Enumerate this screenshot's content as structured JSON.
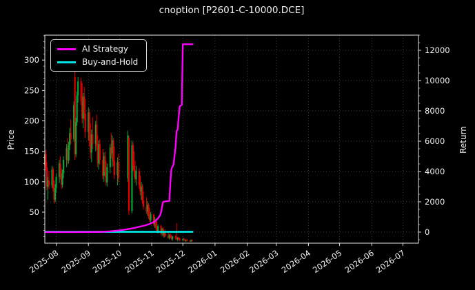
{
  "title": "cnoption [P2601-C-10000.DCE]",
  "legend": {
    "position": "upper-left",
    "items": [
      {
        "label": "AI Strategy",
        "color": "#ff00ff"
      },
      {
        "label": "Buy-and-Hold",
        "color": "#00e5e5"
      }
    ]
  },
  "colors": {
    "background": "#000000",
    "text": "#f2f2f2",
    "spine": "#e6e6e6",
    "grid": "#4f4f4f",
    "candle_up": "#00a83b",
    "candle_down": "#e00000",
    "ai_strategy": "#ff00ff",
    "buy_and_hold": "#00e5e5"
  },
  "chart_data": {
    "type": "candlestick+line",
    "title": "cnoption [P2601-C-10000.DCE]",
    "grid": {
      "show": true,
      "style": "dotted",
      "aligned_to": "return_axis"
    },
    "x_axis": {
      "tick_labels": [
        "2025-08",
        "2025-09",
        "2025-10",
        "2025-11",
        "2025-12",
        "2026-01",
        "2026-02",
        "2026-03",
        "2026-04",
        "2026-05",
        "2026-06",
        "2026-07"
      ],
      "range": [
        "2025-07-21",
        "2026-07-16"
      ],
      "tick_rotation_deg": -35
    },
    "price_axis": {
      "label": "Price",
      "ticks": [
        50,
        100,
        150,
        200,
        250,
        300
      ],
      "minor_tick_step": 10,
      "range": [
        -1,
        341
      ]
    },
    "return_axis": {
      "label": "Return",
      "ticks": [
        0,
        2000,
        4000,
        6000,
        8000,
        10000,
        12000
      ],
      "minor_tick_step": 500,
      "range": [
        -730,
        13000
      ]
    },
    "candles": {
      "axis": "price",
      "columns": [
        "date",
        "open",
        "high",
        "low",
        "close"
      ],
      "rows": [
        [
          "2025-07-21",
          128,
          158,
          112,
          145
        ],
        [
          "2025-07-22",
          145,
          152,
          118,
          124
        ],
        [
          "2025-07-23",
          124,
          132,
          86,
          92
        ],
        [
          "2025-07-24",
          92,
          108,
          70,
          102
        ],
        [
          "2025-07-25",
          102,
          118,
          88,
          94
        ],
        [
          "2025-07-28",
          94,
          126,
          90,
          120
        ],
        [
          "2025-07-29",
          120,
          124,
          84,
          89
        ],
        [
          "2025-07-30",
          89,
          102,
          64,
          70
        ],
        [
          "2025-07-31",
          70,
          96,
          66,
          90
        ],
        [
          "2025-08-01",
          90,
          114,
          82,
          108
        ],
        [
          "2025-08-04",
          108,
          136,
          98,
          130
        ],
        [
          "2025-08-05",
          130,
          142,
          104,
          110
        ],
        [
          "2025-08-06",
          110,
          122,
          88,
          95
        ],
        [
          "2025-08-07",
          95,
          120,
          90,
          114
        ],
        [
          "2025-08-08",
          114,
          142,
          106,
          136
        ],
        [
          "2025-08-11",
          136,
          162,
          124,
          155
        ],
        [
          "2025-08-12",
          155,
          172,
          128,
          135
        ],
        [
          "2025-08-13",
          135,
          166,
          130,
          160
        ],
        [
          "2025-08-14",
          160,
          188,
          152,
          180
        ],
        [
          "2025-08-15",
          180,
          202,
          162,
          170
        ],
        [
          "2025-08-18",
          170,
          232,
          166,
          226
        ],
        [
          "2025-08-19",
          272,
          283,
          136,
          145
        ],
        [
          "2025-08-20",
          145,
          205,
          140,
          198
        ],
        [
          "2025-08-21",
          198,
          248,
          192,
          242
        ],
        [
          "2025-08-22",
          242,
          272,
          230,
          265
        ],
        [
          "2025-08-25",
          265,
          271,
          226,
          232
        ],
        [
          "2025-08-26",
          232,
          262,
          196,
          204
        ],
        [
          "2025-08-27",
          204,
          246,
          188,
          240
        ],
        [
          "2025-08-28",
          240,
          256,
          202,
          212
        ],
        [
          "2025-08-29",
          212,
          236,
          172,
          182
        ],
        [
          "2025-09-01",
          182,
          222,
          168,
          214
        ],
        [
          "2025-09-02",
          214,
          220,
          158,
          166
        ],
        [
          "2025-09-03",
          166,
          196,
          138,
          148
        ],
        [
          "2025-09-04",
          148,
          186,
          132,
          178
        ],
        [
          "2025-09-05",
          178,
          206,
          154,
          162
        ],
        [
          "2025-09-08",
          162,
          200,
          150,
          194
        ],
        [
          "2025-09-09",
          194,
          210,
          152,
          158
        ],
        [
          "2025-09-10",
          158,
          176,
          124,
          130
        ],
        [
          "2025-09-11",
          130,
          168,
          120,
          162
        ],
        [
          "2025-09-12",
          162,
          170,
          128,
          136
        ],
        [
          "2025-09-15",
          136,
          154,
          104,
          110
        ],
        [
          "2025-09-16",
          110,
          148,
          100,
          142
        ],
        [
          "2025-09-17",
          142,
          150,
          108,
          116
        ],
        [
          "2025-09-18",
          116,
          134,
          94,
          99
        ],
        [
          "2025-09-19",
          99,
          130,
          92,
          124
        ],
        [
          "2025-09-22",
          124,
          162,
          114,
          156
        ],
        [
          "2025-09-23",
          156,
          180,
          138,
          146
        ],
        [
          "2025-09-24",
          146,
          176,
          124,
          168
        ],
        [
          "2025-09-25",
          168,
          172,
          126,
          134
        ],
        [
          "2025-09-26",
          134,
          158,
          104,
          111
        ],
        [
          "2025-09-29",
          111,
          140,
          94,
          132
        ],
        [
          "2025-09-30",
          132,
          146,
          99,
          106
        ],
        [
          "2025-10-09",
          106,
          184,
          100,
          176
        ],
        [
          "2025-10-10",
          172,
          176,
          45,
          52
        ],
        [
          "2025-10-13",
          52,
          168,
          48,
          160
        ],
        [
          "2025-10-14",
          160,
          165,
          118,
          126
        ],
        [
          "2025-10-15",
          126,
          150,
          108,
          119
        ],
        [
          "2025-10-16",
          119,
          134,
          98,
          104
        ],
        [
          "2025-10-17",
          104,
          126,
          94,
          118
        ],
        [
          "2025-10-20",
          118,
          122,
          88,
          94
        ],
        [
          "2025-10-21",
          94,
          110,
          78,
          84
        ],
        [
          "2025-10-22",
          84,
          100,
          70,
          92
        ],
        [
          "2025-10-23",
          92,
          96,
          64,
          69
        ],
        [
          "2025-10-24",
          69,
          84,
          54,
          59
        ],
        [
          "2025-10-27",
          59,
          74,
          47,
          51
        ],
        [
          "2025-10-28",
          51,
          68,
          44,
          62
        ],
        [
          "2025-10-29",
          62,
          65,
          39,
          43
        ],
        [
          "2025-10-30",
          43,
          57,
          34,
          37
        ],
        [
          "2025-10-31",
          37,
          50,
          30,
          46
        ],
        [
          "2025-11-03",
          46,
          48,
          27,
          30
        ],
        [
          "2025-11-04",
          30,
          42,
          24,
          38
        ],
        [
          "2025-11-05",
          38,
          40,
          21,
          24
        ],
        [
          "2025-11-06",
          24,
          34,
          17,
          19
        ],
        [
          "2025-11-07",
          19,
          30,
          15,
          27
        ],
        [
          "2025-11-10",
          27,
          29,
          13,
          15
        ],
        [
          "2025-11-11",
          15,
          24,
          11,
          22
        ],
        [
          "2025-11-12",
          22,
          25,
          9,
          12
        ],
        [
          "2025-11-13",
          12,
          20,
          8,
          18
        ],
        [
          "2025-11-14",
          18,
          22,
          9,
          11
        ],
        [
          "2025-11-17",
          11,
          16,
          6,
          8
        ],
        [
          "2025-11-18",
          8,
          14,
          5,
          12
        ],
        [
          "2025-11-19",
          12,
          15,
          7,
          9
        ],
        [
          "2025-11-20",
          9,
          13,
          4,
          6
        ],
        [
          "2025-11-21",
          6,
          11,
          3,
          10
        ],
        [
          "2025-11-24",
          10,
          12,
          5,
          7
        ],
        [
          "2025-11-25",
          7,
          32,
          4,
          5
        ],
        [
          "2025-11-26",
          5,
          9,
          2,
          8
        ],
        [
          "2025-11-27",
          8,
          10,
          4,
          6
        ],
        [
          "2025-11-28",
          6,
          8,
          2,
          4
        ],
        [
          "2025-12-01",
          4,
          7,
          2,
          6
        ],
        [
          "2025-12-02",
          6,
          8,
          3,
          5
        ],
        [
          "2025-12-03",
          5,
          6,
          2,
          3
        ],
        [
          "2025-12-04",
          3,
          5,
          1,
          4
        ],
        [
          "2025-12-05",
          4,
          6,
          2,
          3
        ],
        [
          "2025-12-08",
          3,
          4,
          1,
          2
        ],
        [
          "2025-12-09",
          2,
          5,
          1,
          4
        ],
        [
          "2025-12-10",
          4,
          5,
          2,
          3
        ]
      ]
    },
    "series": [
      {
        "name": "AI Strategy",
        "axis": "return",
        "color": "#ff00ff",
        "width": 2.4,
        "points": [
          [
            "2025-07-21",
            0
          ],
          [
            "2025-08-15",
            0
          ],
          [
            "2025-09-01",
            5
          ],
          [
            "2025-09-15",
            20
          ],
          [
            "2025-09-22",
            50
          ],
          [
            "2025-09-30",
            100
          ],
          [
            "2025-10-05",
            150
          ],
          [
            "2025-10-12",
            230
          ],
          [
            "2025-10-18",
            320
          ],
          [
            "2025-10-25",
            430
          ],
          [
            "2025-10-30",
            540
          ],
          [
            "2025-11-04",
            700
          ],
          [
            "2025-11-07",
            900
          ],
          [
            "2025-11-09",
            1100
          ],
          [
            "2025-11-10",
            1300
          ],
          [
            "2025-11-11",
            1700
          ],
          [
            "2025-11-12",
            2000
          ],
          [
            "2025-11-18",
            2060
          ],
          [
            "2025-11-19",
            3350
          ],
          [
            "2025-11-20",
            4180
          ],
          [
            "2025-11-22",
            4450
          ],
          [
            "2025-11-23",
            5050
          ],
          [
            "2025-11-24",
            5650
          ],
          [
            "2025-11-25",
            6680
          ],
          [
            "2025-11-26",
            6760
          ],
          [
            "2025-11-27",
            7600
          ],
          [
            "2025-11-28",
            8300
          ],
          [
            "2025-11-30",
            8400
          ],
          [
            "2025-12-01",
            12400
          ],
          [
            "2025-12-11",
            12400
          ]
        ]
      },
      {
        "name": "Buy-and-Hold",
        "axis": "return",
        "color": "#00e5e5",
        "width": 2.8,
        "points": [
          [
            "2025-07-21",
            20
          ],
          [
            "2025-12-11",
            20
          ]
        ]
      }
    ]
  }
}
